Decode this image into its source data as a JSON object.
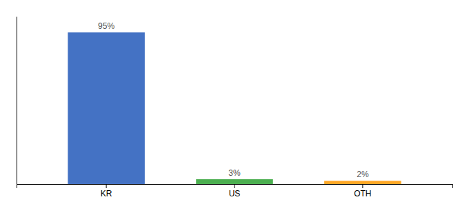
{
  "chart_data": {
    "type": "bar",
    "categories": [
      "KR",
      "US",
      "OTH"
    ],
    "values": [
      95,
      3,
      2
    ],
    "value_labels": [
      "95%",
      "3%",
      "2%"
    ],
    "data_labels": true,
    "colors": [
      "#4472c4",
      "#4caf50",
      "#ffa726"
    ],
    "ylim": [
      0,
      105
    ],
    "grid": false,
    "tick_labels": "x"
  }
}
